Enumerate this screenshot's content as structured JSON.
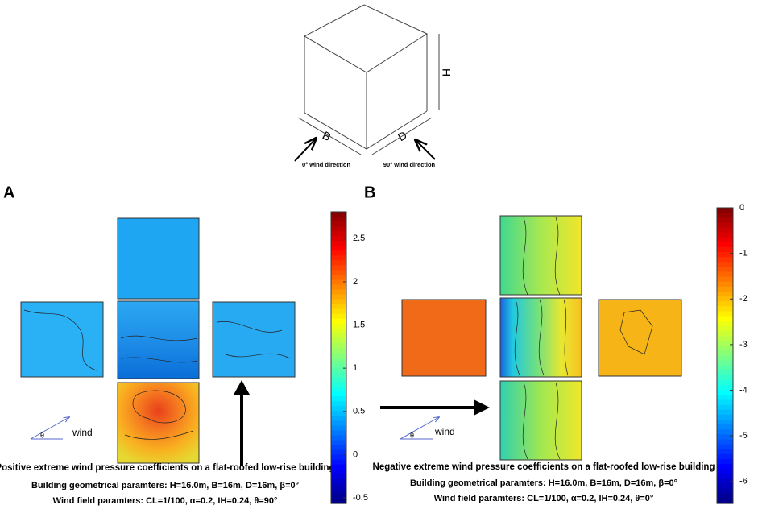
{
  "cube": {
    "height_label": "H",
    "width_label": "B",
    "depth_label": "D",
    "directions": [
      "0° wind direction",
      "90° wind direction"
    ]
  },
  "panels": [
    {
      "label": "A",
      "wind": "wind",
      "angle": "θ",
      "colorbar": {
        "ylim": [
          -0.565,
          2.81
        ],
        "yticks": [
          2.5,
          2,
          1.5,
          1,
          0.5,
          0,
          -0.5
        ]
      },
      "caption": [
        "Positive extreme wind pressure coefficients on a flat-roofed low-rise building",
        "Building geometrical paramters: H=16.0m, B=16m, D=16m, β=0°",
        "Wind field paramters: CL=1/100, α=0.2, IH=0.24, θ=90°"
      ]
    },
    {
      "label": "B",
      "wind": "wind",
      "angle": "θ",
      "colorbar": {
        "ylim": [
          -6.48,
          0
        ],
        "yticks": [
          0,
          -1,
          -2,
          -3,
          -4,
          -5,
          -6
        ]
      },
      "caption": [
        "Negative extreme wind pressure coefficients on a flat-roofed low-rise building",
        "Building geometrical paramters: H=16.0m, B=16m, D=16m, β=0°",
        "Wind field paramters: CL=1/100, α=0.2, IH=0.24, θ=0°"
      ]
    }
  ]
}
